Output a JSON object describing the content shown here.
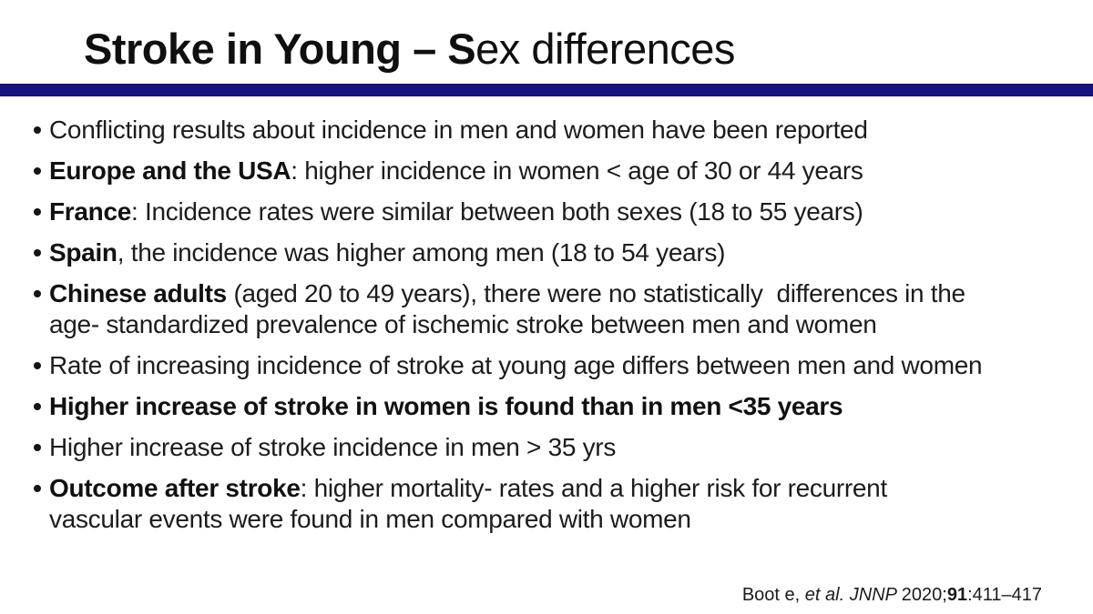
{
  "slide": {
    "title": {
      "bold": "Stroke in Young – S",
      "regular": "ex differences"
    },
    "colors": {
      "accent_bar": "#14147c",
      "title_text": "#0f0f0f",
      "body_text": "#1c1c1c"
    },
    "bullets": [
      {
        "bold": "",
        "rest": "Conflicting results about incidence in men and women have been reported"
      },
      {
        "bold": "Europe and the USA",
        "rest": ": higher incidence in women < age of 30 or 44 years"
      },
      {
        "bold": "France",
        "rest": ": Incidence rates were similar between both sexes (18 to 55 years)"
      },
      {
        "bold": "Spain",
        "rest": ", the incidence was higher among men (18 to 54 years)"
      },
      {
        "bold": "Chinese adults",
        "rest": " (aged 20 to 49 years), there were no statistically  differences in the\nage- standardized prevalence of ischemic stroke between men and women"
      },
      {
        "bold": "",
        "rest": "Rate of increasing incidence of stroke at young age differs between men and women"
      },
      {
        "bold": "Higher increase of stroke in women is found than in men <35 years",
        "rest": ""
      },
      {
        "bold": "",
        "rest": "Higher increase of stroke incidence in men > 35 yrs"
      },
      {
        "bold": "Outcome after stroke",
        "rest": ": higher mortality- rates and a higher risk for recurrent\nvascular events were found in men compared with women"
      }
    ],
    "citation": {
      "pre": "Boot e, ",
      "italic": "et al. JNNP ",
      "year": "2020;",
      "volume": "91",
      "pages": ":411–417"
    }
  }
}
